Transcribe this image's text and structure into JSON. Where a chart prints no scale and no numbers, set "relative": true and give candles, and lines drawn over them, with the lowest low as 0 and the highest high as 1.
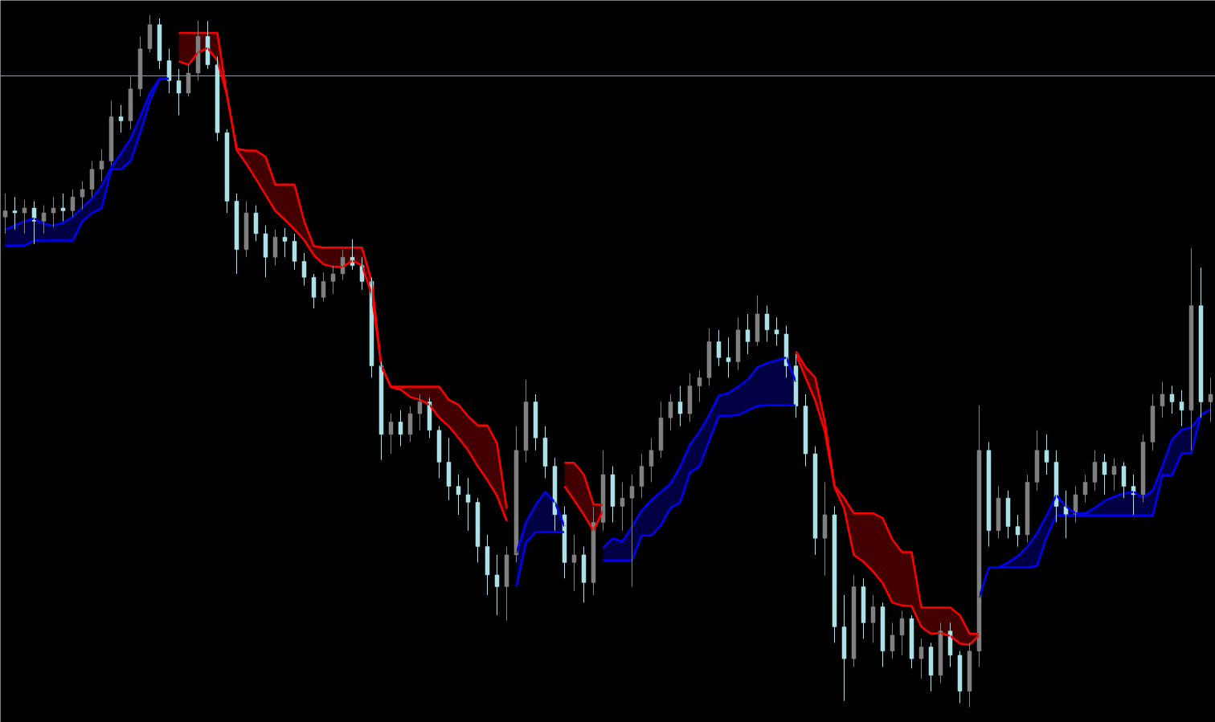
{
  "chart_data": {
    "type": "candlestick",
    "relative": true,
    "tick_labels": false,
    "categories": [
      null,
      null,
      null,
      null,
      null,
      null,
      null,
      null,
      null,
      null,
      null,
      null,
      null,
      null,
      null,
      null,
      null,
      null,
      null,
      null,
      null,
      null,
      null,
      null,
      null,
      null,
      null,
      null,
      null,
      null,
      null,
      null,
      null,
      null,
      null,
      null,
      null,
      null,
      null,
      null,
      null,
      null,
      null,
      null,
      null,
      null,
      null,
      null,
      null,
      null,
      null,
      null,
      null,
      null,
      null,
      null,
      null,
      null,
      null,
      null,
      null,
      null,
      null,
      null,
      null,
      null,
      null,
      null,
      null,
      null,
      null,
      null,
      null,
      null,
      null,
      null,
      null,
      null,
      null,
      null,
      null,
      null,
      null,
      null,
      null,
      null,
      null,
      null,
      null,
      null,
      null,
      null,
      null,
      null,
      null,
      null,
      null,
      null,
      null,
      null,
      null,
      null,
      null,
      null,
      null,
      null,
      null,
      null,
      null,
      null,
      null,
      null,
      null,
      null,
      null,
      null,
      null,
      null,
      null,
      null,
      null,
      null,
      null,
      null,
      null,
      null
    ],
    "ohlc": [
      [
        0.708,
        0.742,
        0.684,
        0.717
      ],
      [
        0.717,
        0.737,
        0.69,
        0.714
      ],
      [
        0.714,
        0.733,
        0.684,
        0.721
      ],
      [
        0.721,
        0.731,
        0.669,
        0.702
      ],
      [
        0.702,
        0.725,
        0.684,
        0.714
      ],
      [
        0.714,
        0.737,
        0.693,
        0.721
      ],
      [
        0.721,
        0.742,
        0.702,
        0.717
      ],
      [
        0.717,
        0.748,
        0.708,
        0.737
      ],
      [
        0.737,
        0.76,
        0.719,
        0.748
      ],
      [
        0.748,
        0.789,
        0.737,
        0.777
      ],
      [
        0.777,
        0.806,
        0.76,
        0.789
      ],
      [
        0.789,
        0.876,
        0.783,
        0.853
      ],
      [
        0.853,
        0.87,
        0.83,
        0.847
      ],
      [
        0.847,
        0.911,
        0.835,
        0.893
      ],
      [
        0.893,
        0.969,
        0.882,
        0.951
      ],
      [
        0.951,
        1,
        0.946,
        0.986
      ],
      [
        0.986,
        0.995,
        0.922,
        0.934
      ],
      [
        0.934,
        0.951,
        0.887,
        0.905
      ],
      [
        0.905,
        0.922,
        0.855,
        0.887
      ],
      [
        0.887,
        0.928,
        0.882,
        0.916
      ],
      [
        0.916,
        0.992,
        0.905,
        0.969
      ],
      [
        0.969,
        0.991,
        0.922,
        0.928
      ],
      [
        0.928,
        0.94,
        0.818,
        0.83
      ],
      [
        0.83,
        0.835,
        0.714,
        0.731
      ],
      [
        0.731,
        0.742,
        0.626,
        0.661
      ],
      [
        0.661,
        0.731,
        0.65,
        0.714
      ],
      [
        0.714,
        0.725,
        0.673,
        0.684
      ],
      [
        0.684,
        0.696,
        0.621,
        0.65
      ],
      [
        0.65,
        0.69,
        0.638,
        0.679
      ],
      [
        0.679,
        0.692,
        0.65,
        0.673
      ],
      [
        0.673,
        0.684,
        0.632,
        0.644
      ],
      [
        0.644,
        0.656,
        0.609,
        0.621
      ],
      [
        0.621,
        0.626,
        0.576,
        0.592
      ],
      [
        0.592,
        0.628,
        0.586,
        0.615
      ],
      [
        0.615,
        0.638,
        0.597,
        0.626
      ],
      [
        0.626,
        0.661,
        0.617,
        0.65
      ],
      [
        0.65,
        0.676,
        0.632,
        0.638
      ],
      [
        0.638,
        0.65,
        0.603,
        0.615
      ],
      [
        0.615,
        0.621,
        0.476,
        0.493
      ],
      [
        0.493,
        0.499,
        0.357,
        0.394
      ],
      [
        0.394,
        0.424,
        0.366,
        0.412
      ],
      [
        0.412,
        0.429,
        0.377,
        0.394
      ],
      [
        0.394,
        0.435,
        0.383,
        0.424
      ],
      [
        0.424,
        0.452,
        0.4,
        0.441
      ],
      [
        0.441,
        0.447,
        0.389,
        0.4
      ],
      [
        0.4,
        0.406,
        0.331,
        0.354
      ],
      [
        0.354,
        0.389,
        0.299,
        0.319
      ],
      [
        0.319,
        0.336,
        0.278,
        0.307
      ],
      [
        0.307,
        0.331,
        0.255,
        0.296
      ],
      [
        0.296,
        0.302,
        0.209,
        0.232
      ],
      [
        0.232,
        0.249,
        0.162,
        0.191
      ],
      [
        0.191,
        0.22,
        0.133,
        0.174
      ],
      [
        0.174,
        0.232,
        0.125,
        0.22
      ],
      [
        0.22,
        0.406,
        0.209,
        0.371
      ],
      [
        0.371,
        0.473,
        0.354,
        0.441
      ],
      [
        0.441,
        0.452,
        0.371,
        0.389
      ],
      [
        0.389,
        0.406,
        0.331,
        0.348
      ],
      [
        0.348,
        0.36,
        0.255,
        0.278
      ],
      [
        0.278,
        0.29,
        0.186,
        0.209
      ],
      [
        0.209,
        0.249,
        0.168,
        0.22
      ],
      [
        0.22,
        0.232,
        0.151,
        0.18
      ],
      [
        0.18,
        0.29,
        0.162,
        0.267
      ],
      [
        0.267,
        0.371,
        0.255,
        0.336
      ],
      [
        0.336,
        0.348,
        0.267,
        0.29
      ],
      [
        0.29,
        0.325,
        0.255,
        0.302
      ],
      [
        0.302,
        0.336,
        0.174,
        0.319
      ],
      [
        0.319,
        0.366,
        0.302,
        0.348
      ],
      [
        0.348,
        0.389,
        0.325,
        0.371
      ],
      [
        0.371,
        0.441,
        0.36,
        0.418
      ],
      [
        0.418,
        0.452,
        0.4,
        0.441
      ],
      [
        0.441,
        0.464,
        0.406,
        0.424
      ],
      [
        0.424,
        0.482,
        0.412,
        0.464
      ],
      [
        0.464,
        0.487,
        0.441,
        0.476
      ],
      [
        0.476,
        0.547,
        0.464,
        0.528
      ],
      [
        0.528,
        0.545,
        0.493,
        0.505
      ],
      [
        0.505,
        0.534,
        0.476,
        0.499
      ],
      [
        0.499,
        0.563,
        0.487,
        0.545
      ],
      [
        0.545,
        0.568,
        0.51,
        0.528
      ],
      [
        0.528,
        0.595,
        0.522,
        0.568
      ],
      [
        0.568,
        0.58,
        0.528,
        0.545
      ],
      [
        0.545,
        0.563,
        0.522,
        0.539
      ],
      [
        0.539,
        0.551,
        0.476,
        0.493
      ],
      [
        0.493,
        0.51,
        0.418,
        0.435
      ],
      [
        0.435,
        0.452,
        0.348,
        0.366
      ],
      [
        0.366,
        0.377,
        0.22,
        0.244
      ],
      [
        0.244,
        0.325,
        0.19,
        0.278
      ],
      [
        0.278,
        0.29,
        0.093,
        0.116
      ],
      [
        0.116,
        0.162,
        0.009,
        0.07
      ],
      [
        0.07,
        0.191,
        0.058,
        0.174
      ],
      [
        0.174,
        0.186,
        0.099,
        0.122
      ],
      [
        0.122,
        0.162,
        0.093,
        0.145
      ],
      [
        0.145,
        0.151,
        0.058,
        0.081
      ],
      [
        0.081,
        0.122,
        0.07,
        0.104
      ],
      [
        0.104,
        0.139,
        0.075,
        0.128
      ],
      [
        0.128,
        0.133,
        0.056,
        0.07
      ],
      [
        0.07,
        0.099,
        0.041,
        0.087
      ],
      [
        0.087,
        0.093,
        0.023,
        0.046
      ],
      [
        0.046,
        0.122,
        0.035,
        0.11
      ],
      [
        0.11,
        0.122,
        0.058,
        0.075
      ],
      [
        0.075,
        0.081,
        0.006,
        0.023
      ],
      [
        0.023,
        0.093,
        0,
        0.081
      ],
      [
        0.081,
        0.436,
        0.058,
        0.371
      ],
      [
        0.371,
        0.383,
        0.232,
        0.255
      ],
      [
        0.255,
        0.319,
        0.244,
        0.302
      ],
      [
        0.302,
        0.313,
        0.244,
        0.261
      ],
      [
        0.261,
        0.278,
        0.232,
        0.249
      ],
      [
        0.249,
        0.336,
        0.238,
        0.325
      ],
      [
        0.325,
        0.4,
        0.313,
        0.371
      ],
      [
        0.371,
        0.394,
        0.336,
        0.354
      ],
      [
        0.354,
        0.371,
        0.267,
        0.29
      ],
      [
        0.29,
        0.313,
        0.244,
        0.278
      ],
      [
        0.278,
        0.319,
        0.267,
        0.307
      ],
      [
        0.307,
        0.336,
        0.296,
        0.325
      ],
      [
        0.325,
        0.371,
        0.313,
        0.354
      ],
      [
        0.354,
        0.366,
        0.307,
        0.336
      ],
      [
        0.336,
        0.36,
        0.313,
        0.348
      ],
      [
        0.348,
        0.354,
        0.302,
        0.319
      ],
      [
        0.319,
        0.336,
        0.278,
        0.307
      ],
      [
        0.307,
        0.394,
        0.296,
        0.383
      ],
      [
        0.383,
        0.452,
        0.371,
        0.435
      ],
      [
        0.435,
        0.47,
        0.418,
        0.452
      ],
      [
        0.452,
        0.464,
        0.424,
        0.441
      ],
      [
        0.441,
        0.458,
        0.406,
        0.429
      ],
      [
        0.429,
        0.663,
        0.371,
        0.58
      ],
      [
        0.58,
        0.635,
        0.418,
        0.441
      ],
      [
        0.441,
        0.476,
        0.412,
        0.452
      ]
    ],
    "colors": [
      "#808080",
      "#b0e0e6",
      "#808080",
      "#b0e0e6",
      "#808080",
      "#808080",
      "#b0e0e6",
      "#808080",
      "#808080",
      "#808080",
      "#808080",
      "#808080",
      "#b0e0e6",
      "#808080",
      "#808080",
      "#808080",
      "#b0e0e6",
      "#b0e0e6",
      "#b0e0e6",
      "#808080",
      "#808080",
      "#b0e0e6",
      "#b0e0e6",
      "#b0e0e6",
      "#b0e0e6",
      "#808080",
      "#b0e0e6",
      "#b0e0e6",
      "#808080",
      "#b0e0e6",
      "#b0e0e6",
      "#b0e0e6",
      "#b0e0e6",
      "#808080",
      "#808080",
      "#808080",
      "#b0e0e6",
      "#b0e0e6",
      "#b0e0e6",
      "#b0e0e6",
      "#808080",
      "#b0e0e6",
      "#808080",
      "#808080",
      "#b0e0e6",
      "#b0e0e6",
      "#b0e0e6",
      "#b0e0e6",
      "#b0e0e6",
      "#b0e0e6",
      "#b0e0e6",
      "#b0e0e6",
      "#808080",
      "#808080",
      "#808080",
      "#b0e0e6",
      "#b0e0e6",
      "#b0e0e6",
      "#b0e0e6",
      "#808080",
      "#b0e0e6",
      "#808080",
      "#808080",
      "#b0e0e6",
      "#808080",
      "#808080",
      "#808080",
      "#808080",
      "#808080",
      "#808080",
      "#b0e0e6",
      "#808080",
      "#808080",
      "#808080",
      "#b0e0e6",
      "#b0e0e6",
      "#808080",
      "#b0e0e6",
      "#808080",
      "#b0e0e6",
      "#b0e0e6",
      "#b0e0e6",
      "#b0e0e6",
      "#b0e0e6",
      "#b0e0e6",
      "#808080",
      "#b0e0e6",
      "#b0e0e6",
      "#808080",
      "#b0e0e6",
      "#808080",
      "#b0e0e6",
      "#808080",
      "#808080",
      "#b0e0e6",
      "#808080",
      "#b0e0e6",
      "#808080",
      "#b0e0e6",
      "#b0e0e6",
      "#808080",
      "#808080",
      "#b0e0e6",
      "#808080",
      "#b0e0e6",
      "#b0e0e6",
      "#808080",
      "#808080",
      "#b0e0e6",
      "#b0e0e6",
      "#b0e0e6",
      "#808080",
      "#808080",
      "#808080",
      "#b0e0e6",
      "#808080",
      "#b0e0e6",
      "#b0e0e6",
      "#808080",
      "#808080",
      "#808080",
      "#b0e0e6",
      "#b0e0e6",
      "#808080",
      "#b0e0e6",
      "#808080"
    ],
    "series": [
      {
        "type": "line",
        "color": "#ff0000",
        "values": [
          null,
          null,
          null,
          null,
          null,
          null,
          null,
          null,
          null,
          null,
          null,
          null,
          null,
          null,
          null,
          null,
          null,
          null,
          0.933,
          0.928,
          0.946,
          0.952,
          0.934,
          0.884,
          0.805,
          0.785,
          0.763,
          0.74,
          0.717,
          0.704,
          0.69,
          0.675,
          0.653,
          0.64,
          0.636,
          0.636,
          0.645,
          0.638,
          0.597,
          0.493,
          0.462,
          0.459,
          0.448,
          0.444,
          0.437,
          0.418,
          0.406,
          0.389,
          0.371,
          0.348,
          0.328,
          0.305,
          0.269,
          null,
          null,
          null,
          null,
          null,
          0.319,
          0.299,
          0.278,
          0.255,
          0.284,
          null,
          null,
          null,
          null,
          null,
          null,
          null,
          null,
          null,
          null,
          null,
          null,
          null,
          null,
          null,
          null,
          null,
          null,
          null,
          0.51,
          0.476,
          0.443,
          0.398,
          0.318,
          0.287,
          0.22,
          0.21,
          0.196,
          0.179,
          0.151,
          0.147,
          0.146,
          0.116,
          0.106,
          0.107,
          0.103,
          0.092,
          0.09,
          0.104,
          null,
          null,
          null,
          null,
          null,
          null,
          null,
          null,
          null,
          null,
          null,
          null,
          null,
          null,
          null,
          null,
          null,
          null,
          null,
          null,
          null,
          null,
          null,
          null
        ]
      },
      {
        "type": "line",
        "color": "#ff0000",
        "values": [
          null,
          null,
          null,
          null,
          null,
          null,
          null,
          null,
          null,
          null,
          null,
          null,
          null,
          null,
          null,
          null,
          null,
          null,
          0.974,
          0.974,
          0.974,
          0.974,
          0.974,
          0.884,
          0.807,
          0.804,
          0.804,
          0.795,
          0.755,
          0.755,
          0.755,
          0.702,
          0.666,
          0.664,
          0.664,
          0.664,
          0.664,
          0.664,
          0.615,
          0.493,
          0.463,
          0.463,
          0.463,
          0.463,
          0.463,
          0.463,
          0.444,
          0.437,
          0.42,
          0.407,
          0.407,
          0.381,
          0.287,
          null,
          null,
          null,
          null,
          null,
          0.353,
          0.353,
          0.336,
          0.293,
          0.292,
          null,
          null,
          null,
          null,
          null,
          null,
          null,
          null,
          null,
          null,
          null,
          null,
          null,
          null,
          null,
          null,
          null,
          null,
          null,
          0.514,
          0.491,
          0.476,
          0.412,
          0.32,
          0.302,
          0.28,
          0.28,
          0.28,
          0.273,
          0.242,
          0.224,
          0.224,
          0.144,
          0.144,
          0.144,
          0.144,
          0.133,
          0.106,
          0.106,
          null,
          null,
          null,
          null,
          null,
          null,
          null,
          null,
          null,
          null,
          null,
          null,
          null,
          null,
          null,
          null,
          null,
          null,
          null,
          null,
          null,
          null,
          null,
          null
        ],
        "lower": [
          null,
          null,
          null,
          null,
          null,
          null,
          null,
          null,
          null,
          null,
          null,
          null,
          null,
          null,
          null,
          null,
          null,
          null,
          0.933,
          0.928,
          0.946,
          0.952,
          0.934,
          0.884,
          0.805,
          0.785,
          0.763,
          0.74,
          0.717,
          0.704,
          0.69,
          0.675,
          0.653,
          0.64,
          0.636,
          0.636,
          0.645,
          0.638,
          0.597,
          0.493,
          0.462,
          0.459,
          0.448,
          0.444,
          0.437,
          0.418,
          0.406,
          0.389,
          0.371,
          0.348,
          0.328,
          0.305,
          0.269,
          null,
          null,
          null,
          null,
          null,
          0.319,
          0.299,
          0.278,
          0.255,
          0.284,
          null,
          null,
          null,
          null,
          null,
          null,
          null,
          null,
          null,
          null,
          null,
          null,
          null,
          null,
          null,
          null,
          null,
          null,
          null,
          0.51,
          0.476,
          0.443,
          0.398,
          0.318,
          0.287,
          0.22,
          0.21,
          0.196,
          0.179,
          0.151,
          0.147,
          0.146,
          0.116,
          0.106,
          0.107,
          0.103,
          0.092,
          0.09,
          0.104,
          null,
          null,
          null,
          null,
          null,
          null,
          null,
          null,
          null,
          null,
          null,
          null,
          null,
          null,
          null,
          null,
          null,
          null,
          null,
          null,
          null,
          null,
          null,
          null
        ],
        "upper": [
          null,
          null,
          null,
          null,
          null,
          null,
          null,
          null,
          null,
          null,
          null,
          null,
          null,
          null,
          null,
          null,
          null,
          null,
          0.974,
          0.974,
          0.974,
          0.974,
          0.974,
          0.884,
          0.807,
          0.804,
          0.804,
          0.795,
          0.755,
          0.755,
          0.755,
          0.702,
          0.666,
          0.664,
          0.664,
          0.664,
          0.664,
          0.664,
          0.615,
          0.493,
          0.463,
          0.463,
          0.463,
          0.463,
          0.463,
          0.463,
          0.444,
          0.437,
          0.42,
          0.407,
          0.407,
          0.381,
          0.287,
          null,
          null,
          null,
          null,
          null,
          0.353,
          0.353,
          0.336,
          0.293,
          0.292,
          null,
          null,
          null,
          null,
          null,
          null,
          null,
          null,
          null,
          null,
          null,
          null,
          null,
          null,
          null,
          null,
          null,
          null,
          null,
          0.514,
          0.491,
          0.476,
          0.412,
          0.32,
          0.302,
          0.28,
          0.28,
          0.28,
          0.273,
          0.242,
          0.224,
          0.224,
          0.144,
          0.144,
          0.144,
          0.144,
          0.133,
          0.106,
          0.106,
          null,
          null,
          null,
          null,
          null,
          null,
          null,
          null,
          null,
          null,
          null,
          null,
          null,
          null,
          null,
          null,
          null,
          null,
          null,
          null,
          null,
          null,
          null,
          null
        ]
      },
      {
        "type": "line",
        "color": "#0000ff",
        "values": [
          0.69,
          0.696,
          0.702,
          0.706,
          0.698,
          0.696,
          0.7,
          0.708,
          0.722,
          0.735,
          0.753,
          0.78,
          0.8,
          0.821,
          0.853,
          0.887,
          0.908,
          0.908,
          null,
          null,
          null,
          null,
          null,
          null,
          null,
          null,
          null,
          null,
          null,
          null,
          null,
          null,
          null,
          null,
          null,
          null,
          null,
          null,
          null,
          null,
          null,
          null,
          null,
          null,
          null,
          null,
          null,
          null,
          null,
          null,
          null,
          null,
          null,
          0.222,
          0.267,
          0.292,
          0.311,
          0.296,
          0.261,
          null,
          null,
          null,
          0.23,
          0.244,
          0.239,
          0.261,
          0.284,
          0.299,
          0.311,
          0.323,
          0.348,
          0.379,
          0.398,
          0.422,
          0.45,
          0.454,
          0.463,
          0.473,
          0.491,
          0.497,
          0.501,
          0.505,
          0.47,
          null,
          null,
          null,
          null,
          null,
          null,
          null,
          null,
          null,
          null,
          null,
          null,
          null,
          null,
          null,
          null,
          null,
          null,
          null,
          null,
          0.202,
          0.209,
          0.218,
          0.232,
          0.251,
          0.277,
          0.306,
          0.29,
          0.28,
          0.28,
          0.288,
          0.298,
          0.304,
          0.309,
          0.311,
          0.303,
          0.313,
          0.348,
          0.387,
          0.401,
          0.404,
          0.422,
          0.43
        ]
      },
      {
        "type": "line",
        "color": "#0000ff",
        "values": [
          0.667,
          0.667,
          0.667,
          0.674,
          0.674,
          0.674,
          0.674,
          0.674,
          0.702,
          0.714,
          0.721,
          0.777,
          0.777,
          0.789,
          0.83,
          0.876,
          0.908,
          0.908,
          null,
          null,
          null,
          null,
          null,
          null,
          null,
          null,
          null,
          null,
          null,
          null,
          null,
          null,
          null,
          null,
          null,
          null,
          null,
          null,
          null,
          null,
          null,
          null,
          null,
          null,
          null,
          null,
          null,
          null,
          null,
          null,
          null,
          null,
          null,
          0.174,
          0.238,
          0.253,
          0.253,
          0.253,
          0.253,
          null,
          null,
          null,
          0.212,
          0.212,
          0.212,
          0.212,
          0.248,
          0.248,
          0.263,
          0.288,
          0.296,
          0.339,
          0.348,
          0.385,
          0.421,
          0.421,
          0.422,
          0.429,
          0.435,
          0.436,
          0.436,
          0.436,
          0.436,
          null,
          null,
          null,
          null,
          null,
          null,
          null,
          null,
          null,
          null,
          null,
          null,
          null,
          null,
          null,
          null,
          null,
          null,
          0.158,
          0.202,
          0.202,
          0.202,
          0.202,
          0.202,
          0.204,
          0.246,
          0.277,
          0.277,
          0.277,
          0.277,
          0.277,
          0.277,
          0.277,
          0.277,
          0.277,
          0.277,
          0.277,
          0.335,
          0.335,
          0.367,
          0.367,
          0.422,
          0.43
        ],
        "lower": [
          0.667,
          0.667,
          0.667,
          0.674,
          0.674,
          0.674,
          0.674,
          0.674,
          0.702,
          0.714,
          0.721,
          0.777,
          0.777,
          0.789,
          0.83,
          0.876,
          0.908,
          0.908,
          null,
          null,
          null,
          null,
          null,
          null,
          null,
          null,
          null,
          null,
          null,
          null,
          null,
          null,
          null,
          null,
          null,
          null,
          null,
          null,
          null,
          null,
          null,
          null,
          null,
          null,
          null,
          null,
          null,
          null,
          null,
          null,
          null,
          null,
          null,
          0.174,
          0.238,
          0.253,
          0.253,
          0.253,
          0.253,
          null,
          null,
          null,
          0.212,
          0.212,
          0.212,
          0.212,
          0.248,
          0.248,
          0.263,
          0.288,
          0.296,
          0.339,
          0.348,
          0.385,
          0.421,
          0.421,
          0.422,
          0.429,
          0.435,
          0.436,
          0.436,
          0.436,
          0.436,
          null,
          null,
          null,
          null,
          null,
          null,
          null,
          null,
          null,
          null,
          null,
          null,
          null,
          null,
          null,
          null,
          null,
          null,
          null,
          null,
          0.202,
          0.202,
          0.202,
          0.202,
          0.204,
          0.246,
          0.277,
          0.277,
          0.277,
          0.277,
          0.277,
          0.277,
          0.277,
          0.277,
          0.277,
          0.277,
          0.277,
          0.335,
          0.335,
          0.367,
          0.367,
          0.422,
          0.43
        ],
        "upper": [
          0.69,
          0.696,
          0.702,
          0.706,
          0.698,
          0.696,
          0.7,
          0.708,
          0.722,
          0.735,
          0.753,
          0.78,
          0.8,
          0.821,
          0.853,
          0.887,
          0.908,
          0.908,
          null,
          null,
          null,
          null,
          null,
          null,
          null,
          null,
          null,
          null,
          null,
          null,
          null,
          null,
          null,
          null,
          null,
          null,
          null,
          null,
          null,
          null,
          null,
          null,
          null,
          null,
          null,
          null,
          null,
          null,
          null,
          null,
          null,
          null,
          null,
          0.222,
          0.267,
          0.292,
          0.311,
          0.296,
          0.261,
          null,
          null,
          null,
          0.23,
          0.244,
          0.239,
          0.261,
          0.284,
          0.299,
          0.311,
          0.323,
          0.348,
          0.379,
          0.398,
          0.422,
          0.45,
          0.454,
          0.463,
          0.473,
          0.491,
          0.497,
          0.501,
          0.505,
          0.47,
          null,
          null,
          null,
          null,
          null,
          null,
          null,
          null,
          null,
          null,
          null,
          null,
          null,
          null,
          null,
          null,
          null,
          null,
          null,
          null,
          0.202,
          0.209,
          0.218,
          0.232,
          0.251,
          0.277,
          0.306,
          0.29,
          0.28,
          0.28,
          0.288,
          0.298,
          0.304,
          0.309,
          0.311,
          0.303,
          0.313,
          0.348,
          0.387,
          0.401,
          0.404,
          0.422,
          0.43
        ]
      }
    ],
    "ref_lines": [
      {
        "axis": "y",
        "value": 0.912,
        "color": "#9aa0aa"
      }
    ]
  }
}
